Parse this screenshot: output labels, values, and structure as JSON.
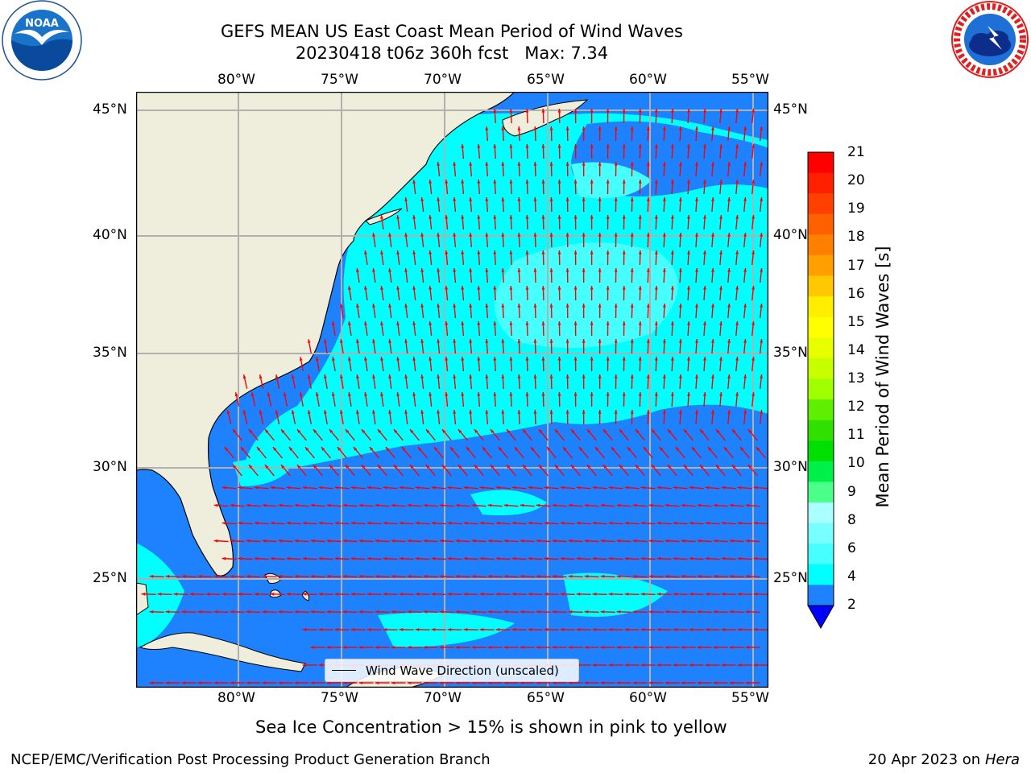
{
  "header": {
    "title_line1": "GEFS MEAN US East Coast Mean Period of Wind Waves",
    "title_line2": "20230418 t06z 360h fcst   Max: 7.34"
  },
  "logos": {
    "left": {
      "name": "noaa-logo",
      "text": "NOAA",
      "ring_text": "NATIONAL OCEANIC AND ATMOSPHERIC ADMINISTRATION · U.S. DEPARTMENT OF COMMERCE"
    },
    "right": {
      "name": "nws-logo",
      "ring_text": "NATIONAL WEATHER SERVICE"
    }
  },
  "map": {
    "lon_labels_top": [
      "80°W",
      "75°W",
      "70°W",
      "65°W",
      "60°W",
      "55°W"
    ],
    "lon_labels_bottom": [
      "80°W",
      "75°W",
      "70°W",
      "65°W",
      "60°W",
      "55°W"
    ],
    "lat_labels_left": [
      "45°N",
      "40°N",
      "35°N",
      "30°N",
      "25°N"
    ],
    "lat_labels_right": [
      "45°N",
      "40°N",
      "35°N",
      "30°N",
      "25°N"
    ],
    "legend_label": "Wind Wave Direction (unscaled)",
    "colors": {
      "land": "#efeedc",
      "band_2_4": "#1e82ff",
      "band_4_6": "#00ffff",
      "band_6_8": "#46ffff",
      "arrow": "#ff0000",
      "grid": "#b0b0b0"
    }
  },
  "colorbar": {
    "label": "Mean Period of Wind Waves [s]",
    "ticks": [
      "21",
      "20",
      "19",
      "18",
      "17",
      "16",
      "15",
      "14",
      "13",
      "12",
      "11",
      "10",
      "9",
      "8",
      "6",
      "4",
      "2"
    ],
    "colors_top_to_bottom": [
      "#ff0000",
      "#ff2000",
      "#ff4000",
      "#ff6000",
      "#ff8000",
      "#ffa000",
      "#ffc800",
      "#ffee00",
      "#ffff00",
      "#e8ff00",
      "#c8ff00",
      "#a0ff00",
      "#5ef000",
      "#30e000",
      "#00e000",
      "#00f04a",
      "#4cff8a",
      "#aaffff",
      "#78ffff",
      "#46ffff",
      "#00ffff",
      "#1e82ff"
    ],
    "under_color": "#0000ff"
  },
  "notes": {
    "sea_ice": "Sea Ice Concentration > 15% is shown in pink to yellow"
  },
  "footer": {
    "left": "NCEP/EMC/Verification Post Processing Product Generation Branch",
    "right_prefix": "20 Apr 2023 on ",
    "right_host": "Hera"
  }
}
